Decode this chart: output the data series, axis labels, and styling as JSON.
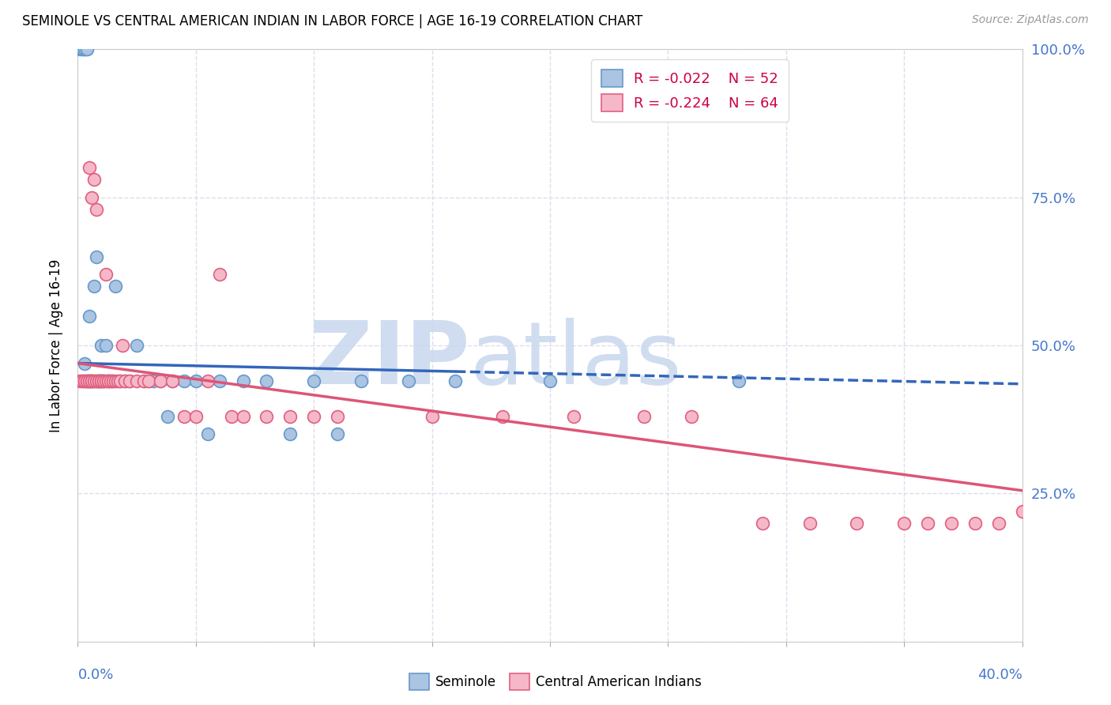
{
  "title": "SEMINOLE VS CENTRAL AMERICAN INDIAN IN LABOR FORCE | AGE 16-19 CORRELATION CHART",
  "source": "Source: ZipAtlas.com",
  "ylabel": "In Labor Force | Age 16-19",
  "xmin": 0.0,
  "xmax": 0.4,
  "ymin": 0.0,
  "ymax": 1.0,
  "seminole_color": "#aac4e2",
  "seminole_edge_color": "#6699cc",
  "central_color": "#f5b8c8",
  "central_edge_color": "#e06080",
  "seminole_line_color": "#3366bb",
  "central_line_color": "#dd5577",
  "seminole_R": -0.022,
  "seminole_N": 52,
  "central_R": -0.224,
  "central_N": 64,
  "legend_R_color": "#cc0044",
  "right_tick_color": "#4477cc",
  "watermark_zip_color": "#c8d8ee",
  "watermark_atlas_color": "#c8d8ee",
  "background_color": "#ffffff",
  "grid_color": "#ddddee",
  "seminole_x": [
    0.001,
    0.002,
    0.002,
    0.003,
    0.003,
    0.003,
    0.004,
    0.004,
    0.004,
    0.005,
    0.005,
    0.005,
    0.006,
    0.006,
    0.007,
    0.007,
    0.008,
    0.008,
    0.009,
    0.009,
    0.01,
    0.01,
    0.011,
    0.012,
    0.013,
    0.014,
    0.015,
    0.016,
    0.018,
    0.02,
    0.022,
    0.025,
    0.028,
    0.03,
    0.032,
    0.035,
    0.038,
    0.04,
    0.045,
    0.05,
    0.055,
    0.06,
    0.07,
    0.08,
    0.09,
    0.1,
    0.11,
    0.12,
    0.14,
    0.16,
    0.2,
    0.28
  ],
  "seminole_y": [
    1.0,
    1.0,
    1.0,
    1.0,
    0.47,
    1.0,
    1.0,
    1.0,
    0.44,
    0.44,
    0.55,
    0.44,
    0.44,
    0.44,
    0.6,
    0.44,
    0.44,
    0.65,
    0.44,
    0.44,
    0.44,
    0.5,
    0.44,
    0.5,
    0.44,
    0.44,
    0.44,
    0.6,
    0.44,
    0.44,
    0.44,
    0.5,
    0.44,
    0.44,
    0.44,
    0.44,
    0.38,
    0.44,
    0.44,
    0.44,
    0.35,
    0.44,
    0.44,
    0.44,
    0.35,
    0.44,
    0.35,
    0.44,
    0.44,
    0.44,
    0.44,
    0.44
  ],
  "central_x": [
    0.001,
    0.002,
    0.002,
    0.003,
    0.003,
    0.004,
    0.004,
    0.005,
    0.005,
    0.005,
    0.006,
    0.006,
    0.006,
    0.007,
    0.007,
    0.008,
    0.008,
    0.009,
    0.009,
    0.01,
    0.01,
    0.011,
    0.011,
    0.012,
    0.012,
    0.013,
    0.013,
    0.014,
    0.015,
    0.016,
    0.017,
    0.018,
    0.019,
    0.02,
    0.022,
    0.025,
    0.028,
    0.03,
    0.035,
    0.04,
    0.045,
    0.05,
    0.055,
    0.06,
    0.065,
    0.07,
    0.08,
    0.09,
    0.1,
    0.11,
    0.15,
    0.18,
    0.21,
    0.24,
    0.26,
    0.29,
    0.31,
    0.33,
    0.35,
    0.36,
    0.37,
    0.38,
    0.39,
    0.4
  ],
  "central_y": [
    0.44,
    0.44,
    0.44,
    0.44,
    0.44,
    0.44,
    0.44,
    0.44,
    0.44,
    0.8,
    0.44,
    0.44,
    0.75,
    0.44,
    0.78,
    0.44,
    0.73,
    0.44,
    0.44,
    0.44,
    0.44,
    0.44,
    0.44,
    0.44,
    0.62,
    0.44,
    0.44,
    0.44,
    0.44,
    0.44,
    0.44,
    0.44,
    0.5,
    0.44,
    0.44,
    0.44,
    0.44,
    0.44,
    0.44,
    0.44,
    0.38,
    0.38,
    0.44,
    0.62,
    0.38,
    0.38,
    0.38,
    0.38,
    0.38,
    0.38,
    0.38,
    0.38,
    0.38,
    0.38,
    0.38,
    0.2,
    0.2,
    0.2,
    0.2,
    0.2,
    0.2,
    0.2,
    0.2,
    0.22
  ],
  "sem_line_x0": 0.0,
  "sem_line_x_solid_end": 0.16,
  "sem_line_x1": 0.4,
  "sem_line_y0": 0.47,
  "sem_line_y1": 0.435,
  "cen_line_x0": 0.0,
  "cen_line_x1": 0.4,
  "cen_line_y0": 0.47,
  "cen_line_y1": 0.255
}
